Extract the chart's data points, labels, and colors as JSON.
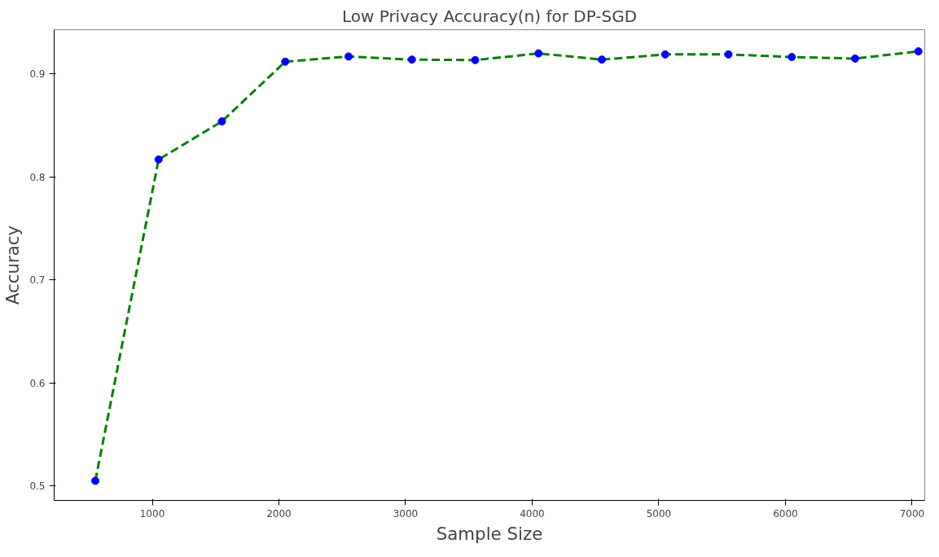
{
  "chart_data": {
    "type": "line",
    "title": "Low Privacy Accuracy(n) for DP-SGD",
    "xlabel": "Sample Size",
    "ylabel": "Accuracy",
    "x": [
      550,
      1050,
      1550,
      2050,
      2550,
      3050,
      3550,
      4050,
      4550,
      5050,
      5550,
      6050,
      6550,
      7050
    ],
    "series": [
      {
        "color": "#008000",
        "values": [
          0.505,
          0.817,
          0.854,
          0.912,
          0.917,
          0.914,
          0.9135,
          0.92,
          0.914,
          0.919,
          0.919,
          0.9165,
          0.915,
          0.922
        ]
      },
      {
        "type": "scatter",
        "marker": "circle",
        "color": "#0000ff",
        "values": [
          0.505,
          0.817,
          0.854,
          0.912,
          0.917,
          0.914,
          0.9135,
          0.92,
          0.914,
          0.919,
          0.919,
          0.9165,
          0.915,
          0.922
        ]
      }
    ],
    "xlim": [
      225,
      7100
    ],
    "ylim": [
      0.486,
      0.943
    ],
    "xticks": [
      1000,
      2000,
      3000,
      4000,
      5000,
      6000,
      7000
    ],
    "yticks": [
      0.5,
      0.6,
      0.7,
      0.8,
      0.9
    ],
    "line_style": "dashed",
    "grid": false
  }
}
